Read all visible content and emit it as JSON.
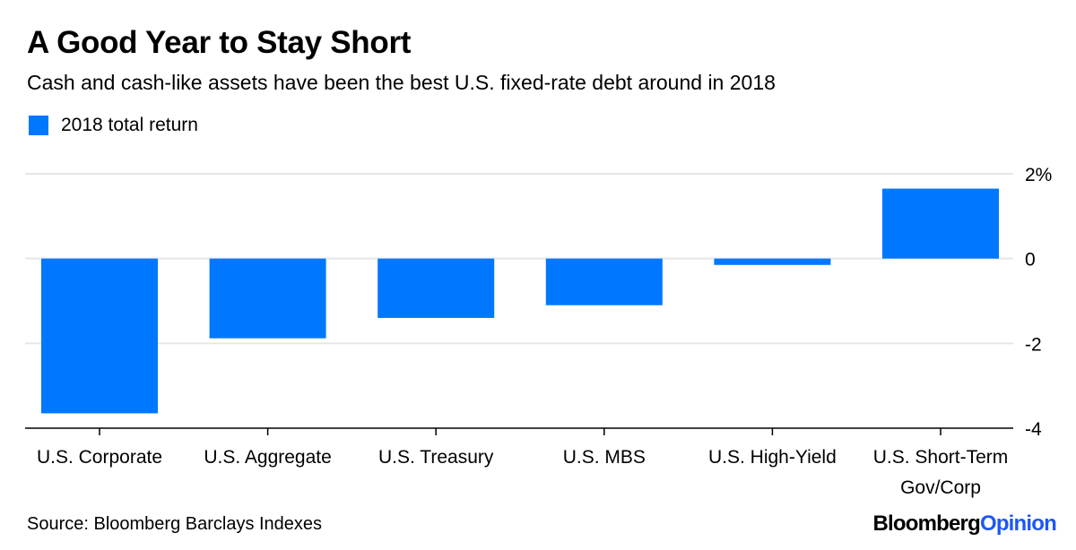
{
  "header": {
    "title": "A Good Year to Stay Short",
    "subtitle": "Cash and cash-like assets have been the best U.S. fixed-rate debt around in 2018"
  },
  "legend": {
    "label": "2018 total return"
  },
  "footer": {
    "source": "Source: Bloomberg Barclays Indexes",
    "brand_primary": "Bloomberg",
    "brand_secondary": "Opinion"
  },
  "colors": {
    "bar": "#0077ff",
    "grid": "#e6e6e6",
    "axis": "#000000",
    "brand_accent": "#1f57f5"
  },
  "chart_data": {
    "type": "bar",
    "categories": [
      [
        "U.S. Corporate"
      ],
      [
        "U.S. Aggregate"
      ],
      [
        "U.S. Treasury"
      ],
      [
        "U.S. MBS"
      ],
      [
        "U.S. High-Yield"
      ],
      [
        "U.S. Short-Term",
        "Gov/Corp"
      ]
    ],
    "series": [
      {
        "name": "2018 total return",
        "values": [
          -3.65,
          -1.88,
          -1.4,
          -1.1,
          -0.15,
          1.65
        ]
      }
    ],
    "ylim": [
      -4,
      2
    ],
    "yticks": [
      2,
      0,
      -2,
      -4
    ],
    "ytick_labels": [
      "2%",
      "0",
      "-2",
      "-4"
    ],
    "y_axis_side": "right",
    "grid": true,
    "legend_position": "top-left"
  }
}
